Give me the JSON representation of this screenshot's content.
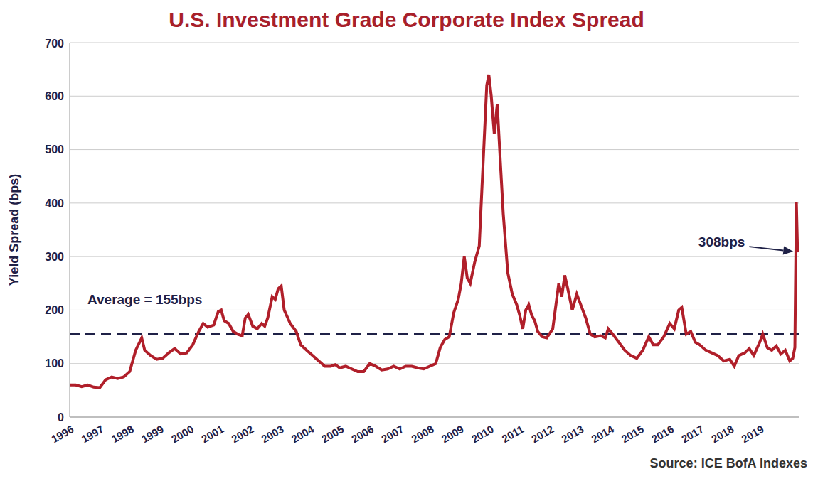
{
  "chart_data": {
    "type": "line",
    "title": "U.S. Investment Grade Corporate Index Spread",
    "y_label": "Yield Spread (bps)",
    "source": "Source: ICE BofA Indexes",
    "color": "#b01f2a",
    "grid": true,
    "legend": false,
    "x": [
      1996.0,
      1996.2,
      1996.4,
      1996.6,
      1996.8,
      1997.0,
      1997.2,
      1997.4,
      1997.6,
      1997.8,
      1998.0,
      1998.2,
      1998.4,
      1998.5,
      1998.7,
      1998.9,
      1999.1,
      1999.3,
      1999.5,
      1999.7,
      1999.9,
      2000.1,
      2000.3,
      2000.45,
      2000.6,
      2000.8,
      2000.95,
      2001.05,
      2001.15,
      2001.3,
      2001.45,
      2001.6,
      2001.75,
      2001.85,
      2001.95,
      2002.1,
      2002.25,
      2002.4,
      2002.5,
      2002.6,
      2002.75,
      2002.85,
      2002.95,
      2003.05,
      2003.15,
      2003.35,
      2003.55,
      2003.7,
      2003.9,
      2004.1,
      2004.3,
      2004.5,
      2004.7,
      2004.85,
      2005.0,
      2005.2,
      2005.4,
      2005.6,
      2005.8,
      2006.0,
      2006.2,
      2006.4,
      2006.6,
      2006.8,
      2007.0,
      2007.2,
      2007.4,
      2007.6,
      2007.8,
      2008.0,
      2008.2,
      2008.35,
      2008.5,
      2008.65,
      2008.8,
      2008.95,
      2009.05,
      2009.15,
      2009.25,
      2009.35,
      2009.5,
      2009.65,
      2009.8,
      2009.9,
      2009.97,
      2010.05,
      2010.15,
      2010.25,
      2010.35,
      2010.45,
      2010.6,
      2010.75,
      2010.9,
      2011.0,
      2011.1,
      2011.2,
      2011.3,
      2011.4,
      2011.5,
      2011.6,
      2011.75,
      2011.9,
      2012.1,
      2012.3,
      2012.4,
      2012.5,
      2012.6,
      2012.75,
      2012.9,
      2013.0,
      2013.2,
      2013.35,
      2013.5,
      2013.7,
      2013.85,
      2013.95,
      2014.1,
      2014.3,
      2014.5,
      2014.7,
      2014.9,
      2015.1,
      2015.3,
      2015.45,
      2015.6,
      2015.8,
      2016.0,
      2016.15,
      2016.3,
      2016.4,
      2016.55,
      2016.7,
      2016.85,
      2017.0,
      2017.2,
      2017.4,
      2017.6,
      2017.8,
      2018.0,
      2018.15,
      2018.3,
      2018.5,
      2018.65,
      2018.8,
      2019.0,
      2019.1,
      2019.25,
      2019.4,
      2019.55,
      2019.7,
      2019.85,
      2020.0,
      2020.1,
      2020.17,
      2020.22,
      2020.26
    ],
    "values": [
      60,
      60,
      57,
      60,
      56,
      55,
      70,
      75,
      72,
      75,
      85,
      125,
      148,
      125,
      115,
      108,
      110,
      120,
      128,
      118,
      120,
      135,
      160,
      175,
      168,
      172,
      197,
      200,
      180,
      175,
      160,
      155,
      152,
      185,
      192,
      170,
      165,
      175,
      170,
      185,
      225,
      220,
      240,
      245,
      200,
      175,
      160,
      135,
      125,
      115,
      105,
      95,
      95,
      98,
      92,
      95,
      90,
      85,
      85,
      100,
      95,
      88,
      90,
      95,
      90,
      95,
      95,
      92,
      90,
      95,
      100,
      130,
      145,
      150,
      195,
      220,
      250,
      300,
      260,
      250,
      290,
      320,
      500,
      620,
      640,
      600,
      530,
      585,
      480,
      380,
      270,
      230,
      210,
      190,
      165,
      200,
      210,
      190,
      180,
      160,
      150,
      148,
      165,
      250,
      225,
      265,
      240,
      200,
      230,
      215,
      185,
      155,
      150,
      152,
      148,
      165,
      155,
      140,
      125,
      115,
      110,
      125,
      150,
      135,
      135,
      150,
      175,
      165,
      200,
      205,
      155,
      160,
      140,
      135,
      125,
      120,
      115,
      105,
      108,
      95,
      115,
      120,
      128,
      115,
      140,
      155,
      130,
      125,
      133,
      118,
      125,
      105,
      110,
      130,
      401,
      308
    ],
    "xlim": [
      1996,
      2020.3
    ],
    "xticks": [
      1996,
      1997,
      1998,
      1999,
      2000,
      2001,
      2002,
      2003,
      2004,
      2005,
      2006,
      2007,
      2008,
      2009,
      2010,
      2011,
      2012,
      2013,
      2014,
      2015,
      2016,
      2017,
      2018,
      2019
    ],
    "ylim": [
      0,
      700
    ],
    "yticks": [
      0,
      100,
      200,
      300,
      400,
      500,
      600,
      700
    ],
    "average": {
      "value": 155,
      "label": "Average = 155bps"
    },
    "annotations": [
      {
        "text": "308bps",
        "x": 2020.26,
        "y": 308
      }
    ]
  }
}
